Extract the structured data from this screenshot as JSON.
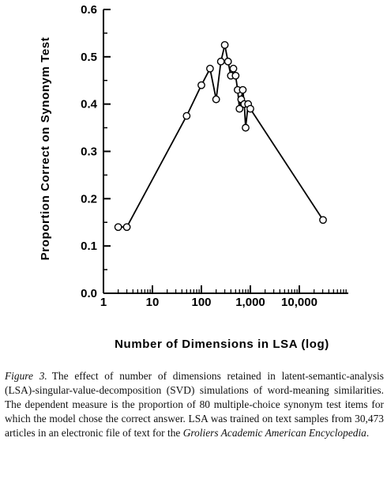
{
  "chart_data": {
    "type": "line",
    "xlabel": "Number of Dimensions in LSA (log)",
    "ylabel": "Proportion Correct on Synonym Test",
    "x_scale": "log",
    "xlim": [
      1,
      100000
    ],
    "ylim": [
      0.0,
      0.6
    ],
    "x_ticks": [
      {
        "value": 1,
        "label": "1"
      },
      {
        "value": 10,
        "label": "10"
      },
      {
        "value": 100,
        "label": "100"
      },
      {
        "value": 1000,
        "label": "1,000"
      },
      {
        "value": 10000,
        "label": "10,000"
      }
    ],
    "y_ticks": [
      {
        "value": 0.0,
        "label": "0.0"
      },
      {
        "value": 0.1,
        "label": "0.1"
      },
      {
        "value": 0.2,
        "label": "0.2"
      },
      {
        "value": 0.3,
        "label": "0.3"
      },
      {
        "value": 0.4,
        "label": "0.4"
      },
      {
        "value": 0.5,
        "label": "0.5"
      },
      {
        "value": 0.6,
        "label": "0.6"
      }
    ],
    "grid": false,
    "marker": "open-circle",
    "x": [
      2,
      3,
      50,
      100,
      150,
      200,
      250,
      300,
      350,
      400,
      450,
      500,
      550,
      600,
      650,
      700,
      750,
      800,
      900,
      1000,
      30473
    ],
    "y": [
      0.14,
      0.14,
      0.375,
      0.44,
      0.475,
      0.41,
      0.49,
      0.525,
      0.49,
      0.46,
      0.475,
      0.46,
      0.43,
      0.39,
      0.41,
      0.43,
      0.4,
      0.35,
      0.4,
      0.39,
      0.155
    ]
  },
  "caption": {
    "label": "Figure 3.",
    "text_before_italic": "The effect of number of dimensions retained in latent-semantic-analysis (LSA)-singular-value-decomposition (SVD) simulations of word-meaning similarities. The dependent measure is the proportion of 80 multiple-choice synonym test items for which the model chose the correct answer. LSA was trained on text samples from 30,473 articles in an electronic file of text for the",
    "italic_title": "Groliers Academic American Encyclopedia",
    "text_after_italic": "."
  }
}
